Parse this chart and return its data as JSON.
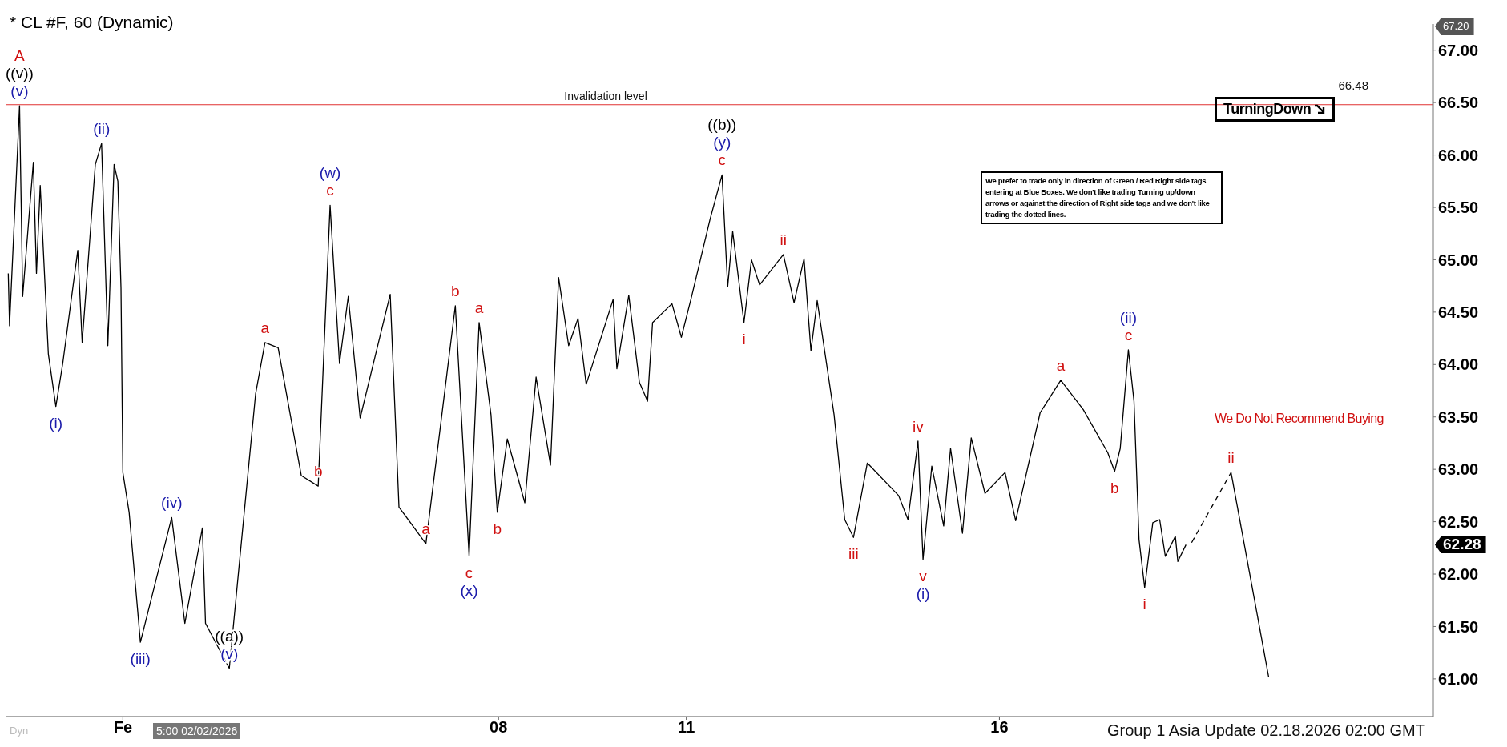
{
  "chart_data": {
    "type": "line",
    "title": "* CL #F, 60 (Dynamic)",
    "xlim": [
      0.14,
      22.93
    ],
    "xticks": [
      {
        "value": 2,
        "label": "Fe"
      },
      {
        "value": 8,
        "label": "08"
      },
      11,
      16
    ],
    "ylim": [
      60.64,
      67.25
    ],
    "yticks": [
      {
        "value": 61,
        "label": "61.00"
      },
      {
        "value": 61.5,
        "label": "61.50"
      },
      {
        "value": 62,
        "label": "62.00"
      },
      {
        "value": 62.5,
        "label": "62.50"
      },
      {
        "value": 63,
        "label": "63.00"
      },
      {
        "value": 63.5,
        "label": "63.50"
      },
      {
        "value": 64,
        "label": "64.00"
      },
      {
        "value": 64.5,
        "label": "64.50"
      },
      {
        "value": 65,
        "label": "65.00"
      },
      {
        "value": 65.5,
        "label": "65.50"
      },
      {
        "value": 66,
        "label": "66.00"
      },
      {
        "value": 66.5,
        "label": "66.50"
      },
      {
        "value": 67,
        "label": "67.00"
      }
    ],
    "grid": false,
    "line_style": "solid",
    "series": [
      {
        "color": "#000000",
        "x": [
          0.17,
          0.19,
          0.35,
          0.4,
          0.57,
          0.62,
          0.68,
          0.81,
          0.93,
          1.04,
          1.28,
          1.35,
          1.56,
          1.66,
          1.76,
          1.86,
          1.92,
          1.97,
          2.0,
          2.1,
          2.28,
          2.78,
          2.99,
          3.27,
          3.32,
          3.7,
          4.12,
          4.27,
          4.48,
          4.85,
          5.12,
          5.31,
          5.46,
          5.6,
          5.79,
          6.27,
          6.41,
          6.84,
          7.31,
          7.53,
          7.69,
          7.88,
          7.98,
          8.14,
          8.42,
          8.6,
          8.83,
          8.96,
          9.12,
          9.27,
          9.4,
          9.83,
          9.89,
          10.08,
          10.25,
          10.38,
          10.46,
          10.77,
          10.92,
          11.08,
          11.38,
          11.57,
          11.66,
          11.74,
          11.92,
          12.04,
          12.17,
          12.55,
          12.72,
          12.88,
          12.99,
          13.09,
          13.36,
          13.53,
          13.67,
          13.89,
          14.39,
          14.54,
          14.7,
          14.78,
          14.92,
          15.11,
          15.22,
          15.41,
          15.55,
          15.77,
          16.09,
          16.26,
          16.65,
          16.98,
          17.34,
          17.73,
          17.84,
          17.93,
          18.06,
          18.15,
          18.23,
          18.32,
          18.45,
          18.56,
          18.65,
          18.81,
          18.85,
          18.98
        ],
        "values": [
          64.87,
          64.37,
          66.47,
          64.65,
          65.93,
          64.87,
          65.71,
          64.1,
          63.6,
          64.01,
          65.09,
          64.21,
          65.91,
          66.11,
          64.18,
          65.91,
          65.75,
          64.73,
          62.97,
          62.59,
          61.35,
          62.54,
          61.53,
          62.44,
          61.53,
          61.1,
          63.72,
          64.21,
          64.16,
          62.94,
          62.84,
          65.52,
          64.01,
          64.65,
          63.49,
          64.67,
          62.64,
          62.29,
          64.56,
          62.17,
          64.4,
          63.52,
          62.59,
          63.29,
          62.68,
          63.88,
          63.04,
          64.83,
          64.18,
          64.44,
          63.81,
          64.62,
          63.96,
          64.66,
          63.83,
          63.65,
          64.4,
          64.58,
          64.26,
          64.64,
          65.39,
          65.81,
          64.74,
          65.27,
          64.4,
          65,
          64.76,
          65.05,
          64.59,
          65.01,
          64.13,
          64.61,
          63.52,
          62.52,
          62.35,
          63.06,
          62.75,
          62.52,
          63.27,
          62.14,
          63.03,
          62.46,
          63.2,
          62.39,
          63.3,
          62.77,
          62.97,
          62.51,
          63.54,
          63.85,
          63.57,
          63.16,
          62.98,
          63.2,
          64.14,
          63.65,
          62.33,
          61.87,
          62.49,
          62.52,
          62.17,
          62.36,
          62.12,
          62.28
        ]
      },
      {
        "color": "#000000",
        "line_style": "dashed",
        "x": [
          19.07,
          19.7
        ],
        "values": [
          62.3,
          62.97
        ]
      },
      {
        "color": "#000000",
        "x": [
          19.7,
          20.3
        ],
        "values": [
          62.97,
          61.02
        ]
      }
    ],
    "ref_lines": [
      {
        "axis": "y",
        "value": 66.48,
        "label": "Invalidation level",
        "color": "#e03030"
      }
    ],
    "annotations": [
      {
        "text": "(v)",
        "x": 0.35,
        "y": 66.47
      },
      {
        "text": "((v))",
        "x": 0.35,
        "y": 66.47
      },
      {
        "text": "A",
        "x": 0.35,
        "y": 66.47
      },
      {
        "text": "(i)",
        "x": 0.93,
        "y": 63.6
      },
      {
        "text": "(ii)",
        "x": 1.66,
        "y": 66.11
      },
      {
        "text": "(iii)",
        "x": 2.28,
        "y": 61.35
      },
      {
        "text": "(iv)",
        "x": 2.78,
        "y": 62.54
      },
      {
        "text": "(v)",
        "x": 3.7,
        "y": 61.1
      },
      {
        "text": "((a))",
        "x": 3.7,
        "y": 61.1
      },
      {
        "text": "a",
        "x": 4.27,
        "y": 64.21
      },
      {
        "text": "b",
        "x": 5.12,
        "y": 62.84
      },
      {
        "text": "c",
        "x": 5.31,
        "y": 65.52
      },
      {
        "text": "(w)",
        "x": 5.31,
        "y": 65.52
      },
      {
        "text": "a",
        "x": 6.84,
        "y": 62.29
      },
      {
        "text": "b",
        "x": 7.31,
        "y": 64.56
      },
      {
        "text": "c",
        "x": 7.53,
        "y": 62.17
      },
      {
        "text": "(x)",
        "x": 7.53,
        "y": 62.17
      },
      {
        "text": "a",
        "x": 7.69,
        "y": 64.4
      },
      {
        "text": "b",
        "x": 7.98,
        "y": 62.59
      },
      {
        "text": "c",
        "x": 11.57,
        "y": 65.81
      },
      {
        "text": "(y)",
        "x": 11.57,
        "y": 65.81
      },
      {
        "text": "((b))",
        "x": 11.57,
        "y": 65.81
      },
      {
        "text": "i",
        "x": 11.92,
        "y": 64.4
      },
      {
        "text": "ii",
        "x": 12.55,
        "y": 65.05
      },
      {
        "text": "iii",
        "x": 13.67,
        "y": 62.35
      },
      {
        "text": "iv",
        "x": 14.7,
        "y": 63.27
      },
      {
        "text": "v",
        "x": 14.78,
        "y": 62.14
      },
      {
        "text": "(i)",
        "x": 14.78,
        "y": 62.14
      },
      {
        "text": "a",
        "x": 16.98,
        "y": 63.85
      },
      {
        "text": "b",
        "x": 17.84,
        "y": 62.98
      },
      {
        "text": "c",
        "x": 18.06,
        "y": 64.14
      },
      {
        "text": "(ii)",
        "x": 18.06,
        "y": 64.14
      },
      {
        "text": "i",
        "x": 18.32,
        "y": 61.87
      },
      {
        "text": "ii",
        "x": 19.7,
        "y": 62.97
      },
      "67.20",
      "62.28",
      "66.48",
      "TurningDown",
      "We prefer to trade only in direction of Green / Red Right side tags entering at Blue Boxes. We don't like trading Turning up/down arrows or against the direction of Right side tags and we don't like trading the dotted lines.",
      "We Do Not Recommend Buying",
      "Group 1 Asia Update 02.18.2026 02:00 GMT",
      "5:00 02/02/2026",
      "Dyn"
    ]
  }
}
